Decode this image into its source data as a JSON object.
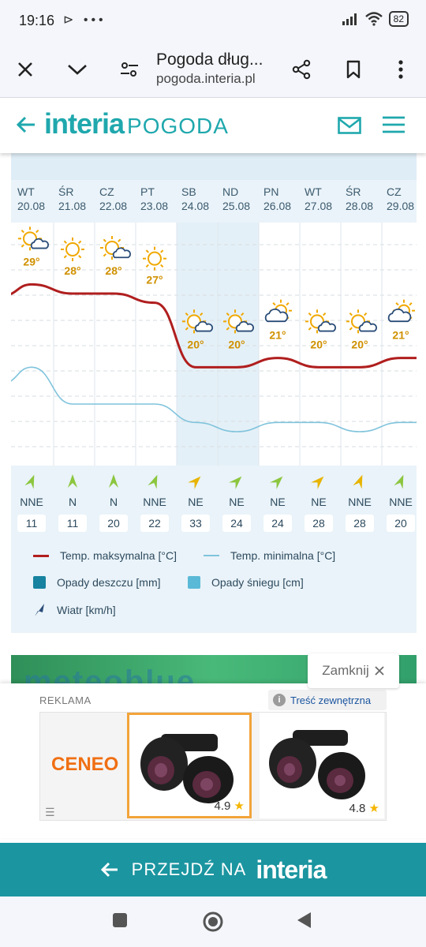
{
  "status_bar": {
    "time": "19:16",
    "indicators": "⊳ •••",
    "battery": "82"
  },
  "browser": {
    "title": "Pogoda dług...",
    "url": "pogoda.interia.pl"
  },
  "header": {
    "brand": "interia",
    "section": "POGODA"
  },
  "days": [
    {
      "d": "WT",
      "date": "20.08",
      "temp": "29°",
      "wind_dir": "NNE",
      "wind_speed": "11",
      "icon": "sun-cloud-icon",
      "weekend": false
    },
    {
      "d": "ŚR",
      "date": "21.08",
      "temp": "28°",
      "wind_dir": "N",
      "wind_speed": "11",
      "icon": "sun-icon",
      "weekend": false
    },
    {
      "d": "CZ",
      "date": "22.08",
      "temp": "28°",
      "wind_dir": "N",
      "wind_speed": "20",
      "icon": "sun-cloud-icon",
      "weekend": false
    },
    {
      "d": "PT",
      "date": "23.08",
      "temp": "27°",
      "wind_dir": "NNE",
      "wind_speed": "22",
      "icon": "sun-icon",
      "weekend": false
    },
    {
      "d": "SB",
      "date": "24.08",
      "temp": "20°",
      "wind_dir": "NE",
      "wind_speed": "33",
      "icon": "sun-cloud-icon",
      "weekend": true
    },
    {
      "d": "ND",
      "date": "25.08",
      "temp": "20°",
      "wind_dir": "NE",
      "wind_speed": "24",
      "icon": "sun-cloud-icon",
      "weekend": true
    },
    {
      "d": "PN",
      "date": "26.08",
      "temp": "21°",
      "wind_dir": "NE",
      "wind_speed": "24",
      "icon": "cloud-sun-icon",
      "weekend": false
    },
    {
      "d": "WT",
      "date": "27.08",
      "temp": "20°",
      "wind_dir": "NE",
      "wind_speed": "28",
      "icon": "sun-cloud-icon",
      "weekend": false
    },
    {
      "d": "ŚR",
      "date": "28.08",
      "temp": "20°",
      "wind_dir": "NNE",
      "wind_speed": "28",
      "icon": "sun-cloud-icon",
      "weekend": false
    },
    {
      "d": "CZ",
      "date": "29.08",
      "temp": "21°",
      "wind_dir": "NNE",
      "wind_speed": "20",
      "icon": "cloud-sun-icon",
      "weekend": false
    }
  ],
  "chart_data": {
    "type": "line",
    "x": [
      "20.08",
      "21.08",
      "22.08",
      "23.08",
      "24.08",
      "25.08",
      "26.08",
      "27.08",
      "28.08",
      "29.08"
    ],
    "series": [
      {
        "name": "Temp. maksymalna [°C]",
        "values": [
          29,
          28,
          28,
          27,
          20,
          20,
          21,
          20,
          20,
          21
        ],
        "color": "#b01e1e"
      },
      {
        "name": "Temp. minimalna [°C]",
        "values": [
          20,
          16,
          16,
          16,
          14,
          13,
          14,
          14,
          13,
          14
        ],
        "color": "#7fc3dc"
      }
    ],
    "ylim": [
      10,
      34
    ]
  },
  "legend": {
    "max": "Temp. maksymalna [°C]",
    "min": "Temp. minimalna [°C]",
    "rain": "Opady deszczu [mm]",
    "snow": "Opady śniegu [cm]",
    "wind": "Wiatr [km/h]"
  },
  "colors": {
    "accent": "#1fa8ad",
    "max_line": "#b01e1e",
    "min_line": "#7fc3dc",
    "rain": "#1783a0",
    "snow": "#5ab9d6",
    "cta": "#1b95a0"
  },
  "ad": {
    "close_label": "Zamknij",
    "label": "REKLAMA",
    "info": "Treść zewnętrzna",
    "shop": "CENEO",
    "products": [
      {
        "rating": "4.9"
      },
      {
        "rating": "4.8"
      }
    ],
    "banner_text": "meteoblue"
  },
  "cta": {
    "text": "PRZEJDŹ NA",
    "brand": "interia"
  }
}
